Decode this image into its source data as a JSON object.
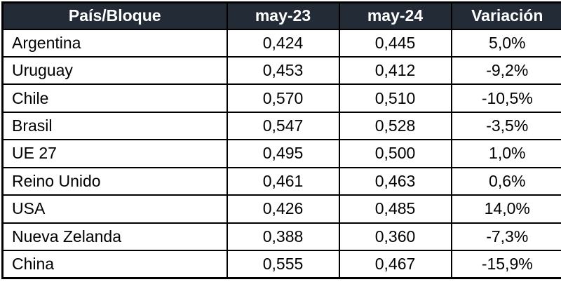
{
  "chart_data": {
    "type": "table",
    "columns": [
      "País/Bloque",
      "may-23",
      "may-24",
      "Variación"
    ],
    "rows": [
      {
        "pais": "Argentina",
        "may23": "0,424",
        "may24": "0,445",
        "variacion": "5,0%"
      },
      {
        "pais": "Uruguay",
        "may23": "0,453",
        "may24": "0,412",
        "variacion": "-9,2%"
      },
      {
        "pais": "Chile",
        "may23": "0,570",
        "may24": "0,510",
        "variacion": "-10,5%"
      },
      {
        "pais": "Brasil",
        "may23": "0,547",
        "may24": "0,528",
        "variacion": "-3,5%"
      },
      {
        "pais": "UE 27",
        "may23": "0,495",
        "may24": "0,500",
        "variacion": "1,0%"
      },
      {
        "pais": "Reino Unido",
        "may23": "0,461",
        "may24": "0,463",
        "variacion": "0,6%"
      },
      {
        "pais": "USA",
        "may23": "0,426",
        "may24": "0,485",
        "variacion": "14,0%"
      },
      {
        "pais": "Nueva Zelanda",
        "may23": "0,388",
        "may24": "0,360",
        "variacion": "-7,3%"
      },
      {
        "pais": "China",
        "may23": "0,555",
        "may24": "0,467",
        "variacion": "-15,9%"
      }
    ]
  },
  "colors": {
    "header_bg": "#222B36",
    "header_text": "#FFFFFF",
    "border": "#000000",
    "row_bg": "#FFFFFF",
    "row_text": "#000000"
  }
}
